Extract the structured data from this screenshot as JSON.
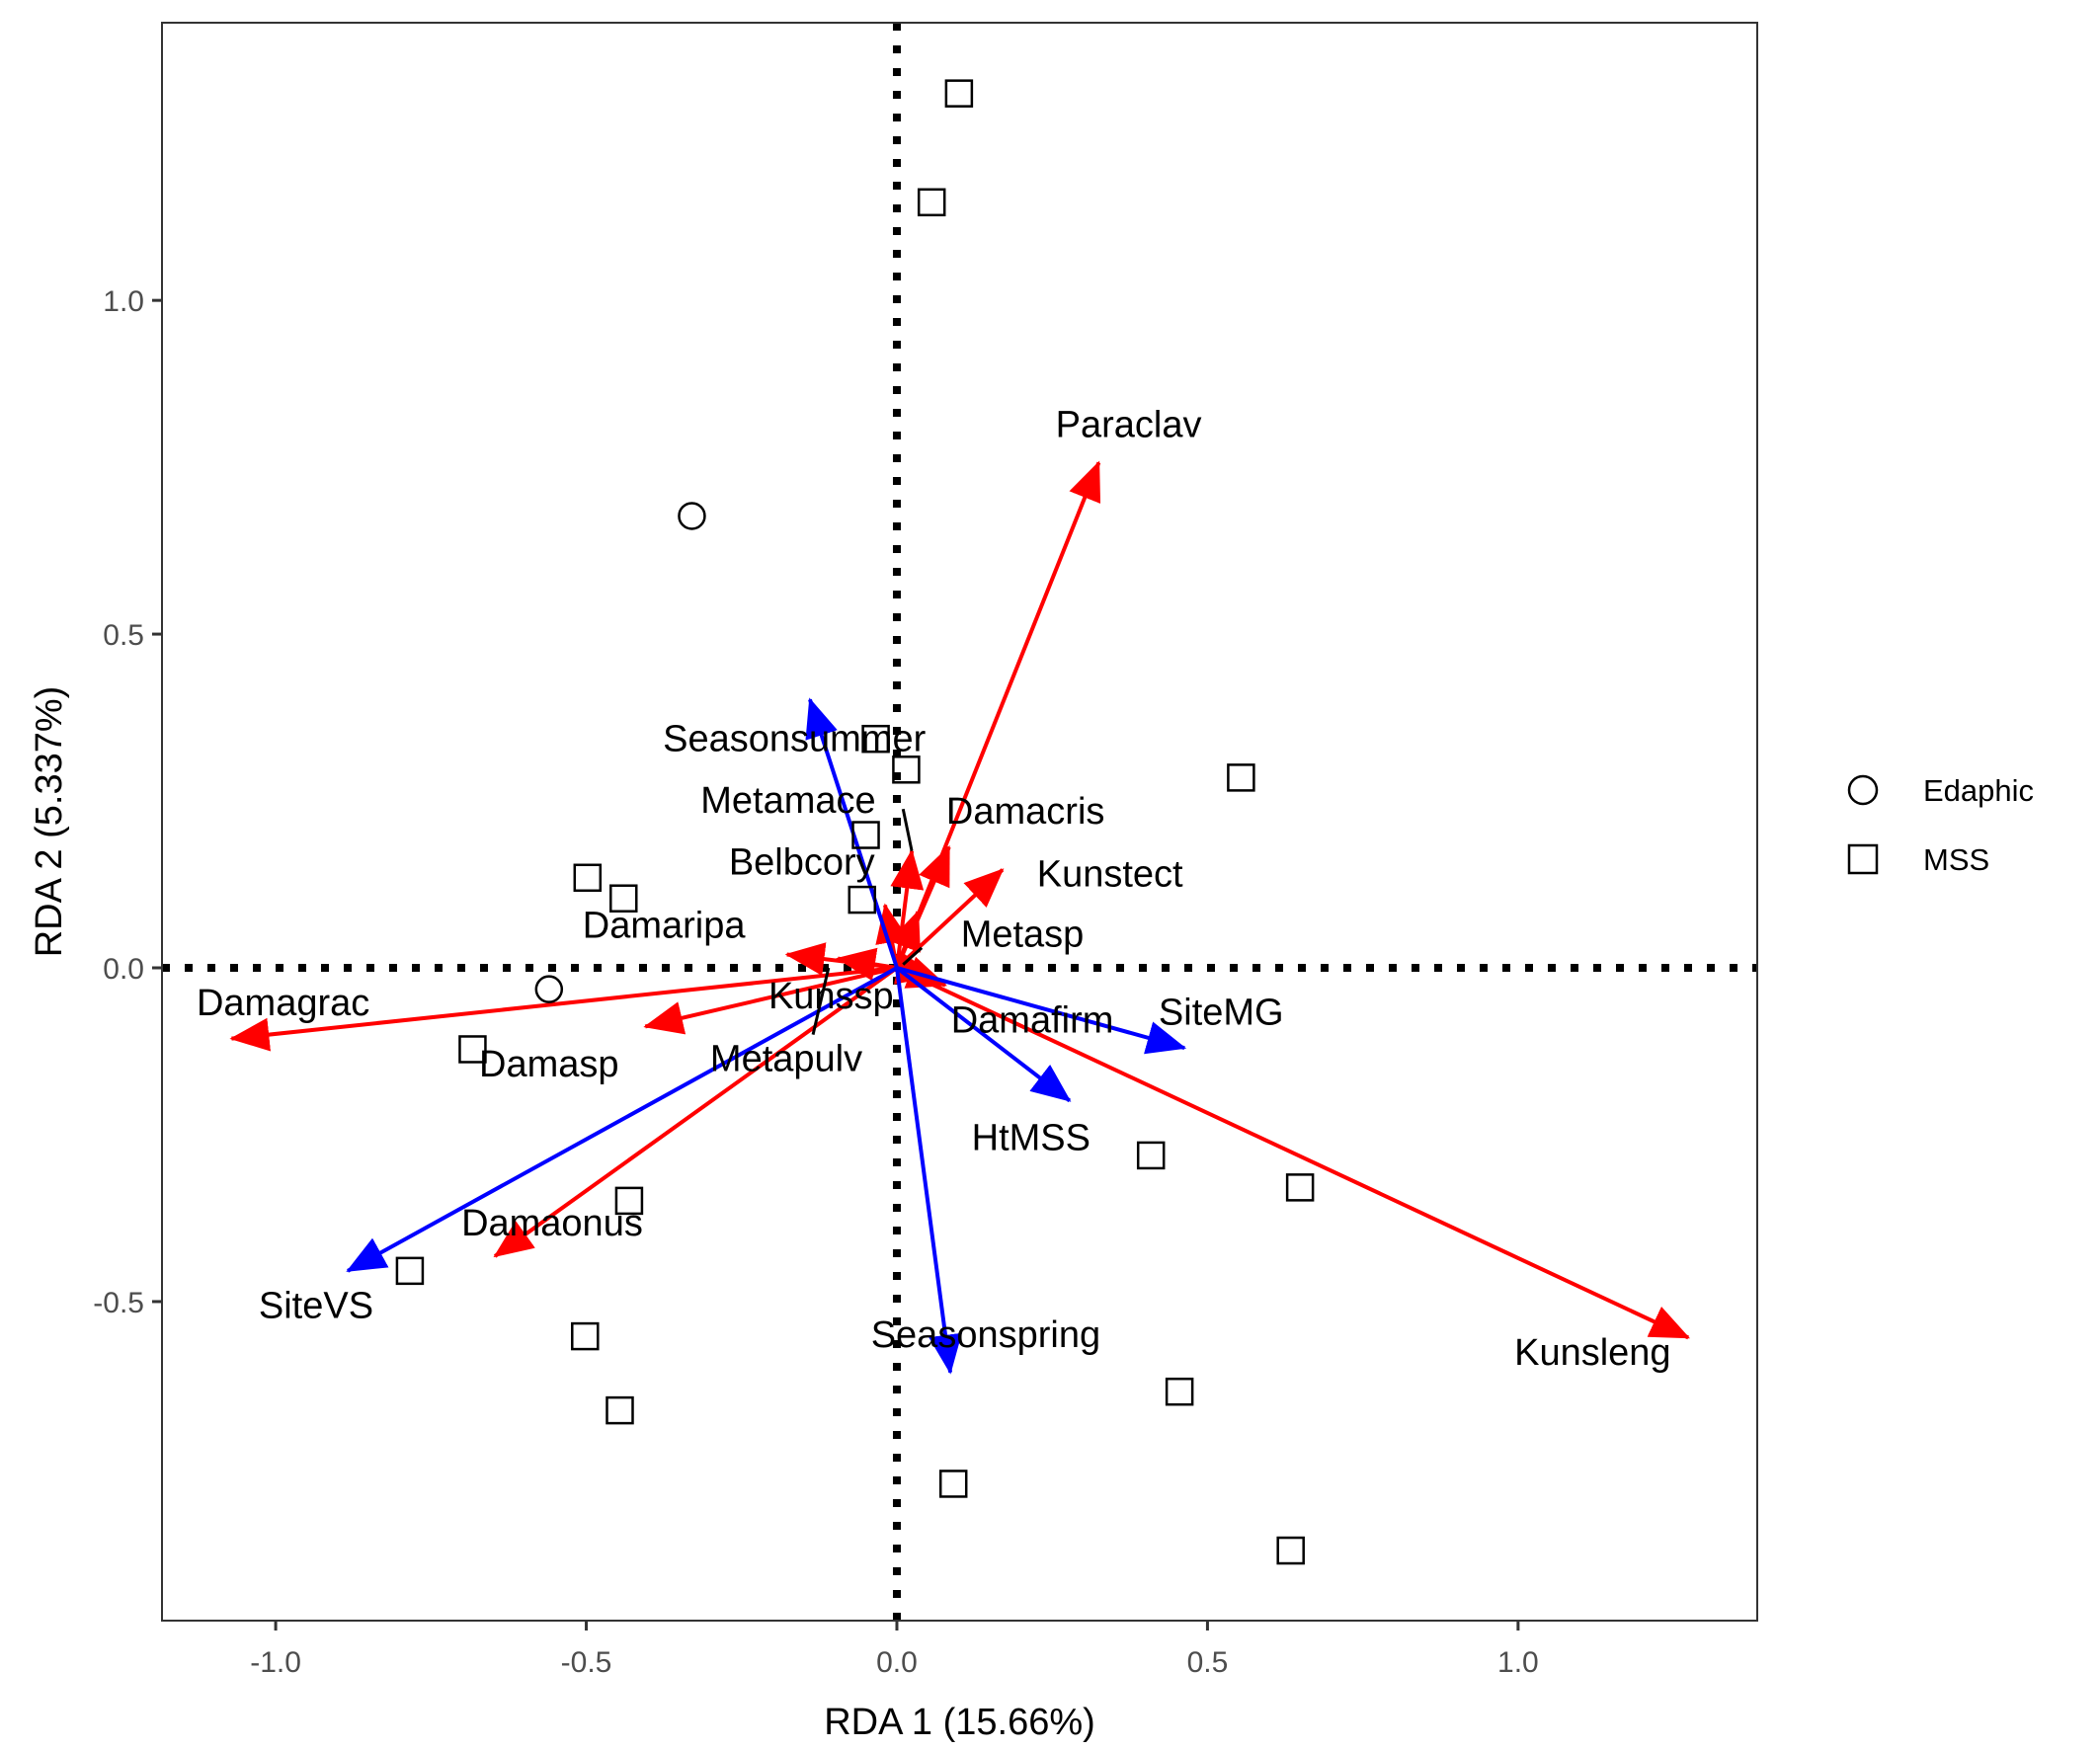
{
  "chart_data": {
    "type": "scatter",
    "subtype": "rda-biplot",
    "title": "",
    "xlabel": "RDA 1 (15.66%)",
    "ylabel": "RDA 2 (5.337%)",
    "xlim": [
      -1.183,
      1.385
    ],
    "ylim": [
      -0.978,
      1.416
    ],
    "xticks": [
      -1.0,
      -0.5,
      0.0,
      0.5,
      1.0
    ],
    "xtick_labels": [
      "-1.0",
      "-0.5",
      "0.0",
      "0.5",
      "1.0"
    ],
    "yticks": [
      -0.5,
      0.0,
      0.5,
      1.0
    ],
    "ytick_labels": [
      "-0.5",
      "0.0",
      "0.5",
      "1.0"
    ],
    "grid": false,
    "reference_lines": {
      "x": 0,
      "y": 0,
      "style": "dotted",
      "color": "#000000"
    },
    "legend": {
      "placement": "right",
      "entries": [
        {
          "label": "Edaphic",
          "shape": "circle-open"
        },
        {
          "label": "MSS",
          "shape": "square-open"
        }
      ]
    },
    "points": [
      {
        "group": "MSS",
        "x": 0.1,
        "y": 1.31
      },
      {
        "group": "MSS",
        "x": 0.056,
        "y": 1.147
      },
      {
        "group": "MSS",
        "x": 0.554,
        "y": 0.285
      },
      {
        "group": "MSS",
        "x": -0.034,
        "y": 0.343
      },
      {
        "group": "MSS",
        "x": 0.015,
        "y": 0.297
      },
      {
        "group": "MSS",
        "x": -0.05,
        "y": 0.199
      },
      {
        "group": "MSS",
        "x": -0.056,
        "y": 0.102
      },
      {
        "group": "MSS",
        "x": -0.498,
        "y": 0.135
      },
      {
        "group": "MSS",
        "x": -0.44,
        "y": 0.104
      },
      {
        "group": "MSS",
        "x": -0.683,
        "y": -0.122
      },
      {
        "group": "MSS",
        "x": -0.431,
        "y": -0.349
      },
      {
        "group": "MSS",
        "x": -0.784,
        "y": -0.454
      },
      {
        "group": "MSS",
        "x": -0.502,
        "y": -0.552
      },
      {
        "group": "MSS",
        "x": -0.446,
        "y": -0.663
      },
      {
        "group": "MSS",
        "x": 0.409,
        "y": -0.281
      },
      {
        "group": "MSS",
        "x": 0.649,
        "y": -0.329
      },
      {
        "group": "MSS",
        "x": 0.455,
        "y": -0.635
      },
      {
        "group": "MSS",
        "x": 0.091,
        "y": -0.773
      },
      {
        "group": "MSS",
        "x": 0.634,
        "y": -0.873
      },
      {
        "group": "Edaphic",
        "x": -0.33,
        "y": 0.677
      },
      {
        "group": "Edaphic",
        "x": -0.56,
        "y": -0.032
      }
    ],
    "species_arrows": {
      "color": "#ff0000",
      "items": [
        {
          "name": "Paraclav",
          "x": 0.325,
          "y": 0.757,
          "label_x": 0.373,
          "label_y": 0.81
        },
        {
          "name": "Kunsleng",
          "x": 1.274,
          "y": -0.554,
          "label_x": 1.12,
          "label_y": -0.58
        },
        {
          "name": "Damagrac",
          "x": -1.071,
          "y": -0.106,
          "label_x": -0.988,
          "label_y": -0.056
        },
        {
          "name": "Damasp",
          "x": -0.405,
          "y": -0.088,
          "label_x": -0.56,
          "label_y": -0.148
        },
        {
          "name": "Damaonus",
          "x": -0.647,
          "y": -0.432,
          "label_x": -0.555,
          "label_y": -0.386
        },
        {
          "name": "Kunstect",
          "x": 0.17,
          "y": 0.147,
          "label_x": 0.343,
          "label_y": 0.137
        },
        {
          "name": "Damacris",
          "x": 0.084,
          "y": 0.181,
          "label_x": 0.207,
          "label_y": 0.231
        },
        {
          "name": "Metamace",
          "x": 0.024,
          "y": 0.175,
          "label_x": -0.175,
          "label_y": 0.247
        },
        {
          "name": "Belbcory",
          "x": -0.019,
          "y": 0.094,
          "label_x": -0.153,
          "label_y": 0.155
        },
        {
          "name": "Metasp",
          "x": 0.034,
          "y": 0.084,
          "label_x": 0.202,
          "label_y": 0.047
        },
        {
          "name": "Damaripa",
          "x": -0.177,
          "y": 0.02,
          "label_x": -0.375,
          "label_y": 0.06
        },
        {
          "name": "Metapulv",
          "x": -0.095,
          "y": 0.014,
          "label_x": -0.178,
          "label_y": -0.14
        },
        {
          "name": "Kunssp",
          "x": 0.078,
          "y": -0.026,
          "label_x": -0.106,
          "label_y": -0.046
        },
        {
          "name": "Damafirm",
          "x": 0.06,
          "y": -0.012,
          "label_x": 0.218,
          "label_y": -0.082
        }
      ]
    },
    "environment_arrows": {
      "color": "#0000ff",
      "items": [
        {
          "name": "Seasonsummer",
          "x": -0.14,
          "y": 0.402,
          "label_x": -0.165,
          "label_y": 0.34
        },
        {
          "name": "SiteMG",
          "x": 0.463,
          "y": -0.12,
          "label_x": 0.522,
          "label_y": -0.07
        },
        {
          "name": "HtMSS",
          "x": 0.278,
          "y": -0.199,
          "label_x": 0.216,
          "label_y": -0.258
        },
        {
          "name": "SiteVS",
          "x": -0.884,
          "y": -0.454,
          "label_x": -0.935,
          "label_y": -0.51
        },
        {
          "name": "Seasonspring",
          "x": 0.086,
          "y": -0.606,
          "label_x": 0.143,
          "label_y": -0.553
        }
      ]
    },
    "label_connectors": [
      {
        "x1": 0.01,
        "y1": 0.238,
        "x2": 0.024,
        "y2": 0.175
      },
      {
        "x1": -0.135,
        "y1": -0.1,
        "x2": -0.11,
        "y2": 0.0
      },
      {
        "x1": 0.01,
        "y1": 0.005,
        "x2": 0.04,
        "y2": 0.03
      }
    ]
  }
}
